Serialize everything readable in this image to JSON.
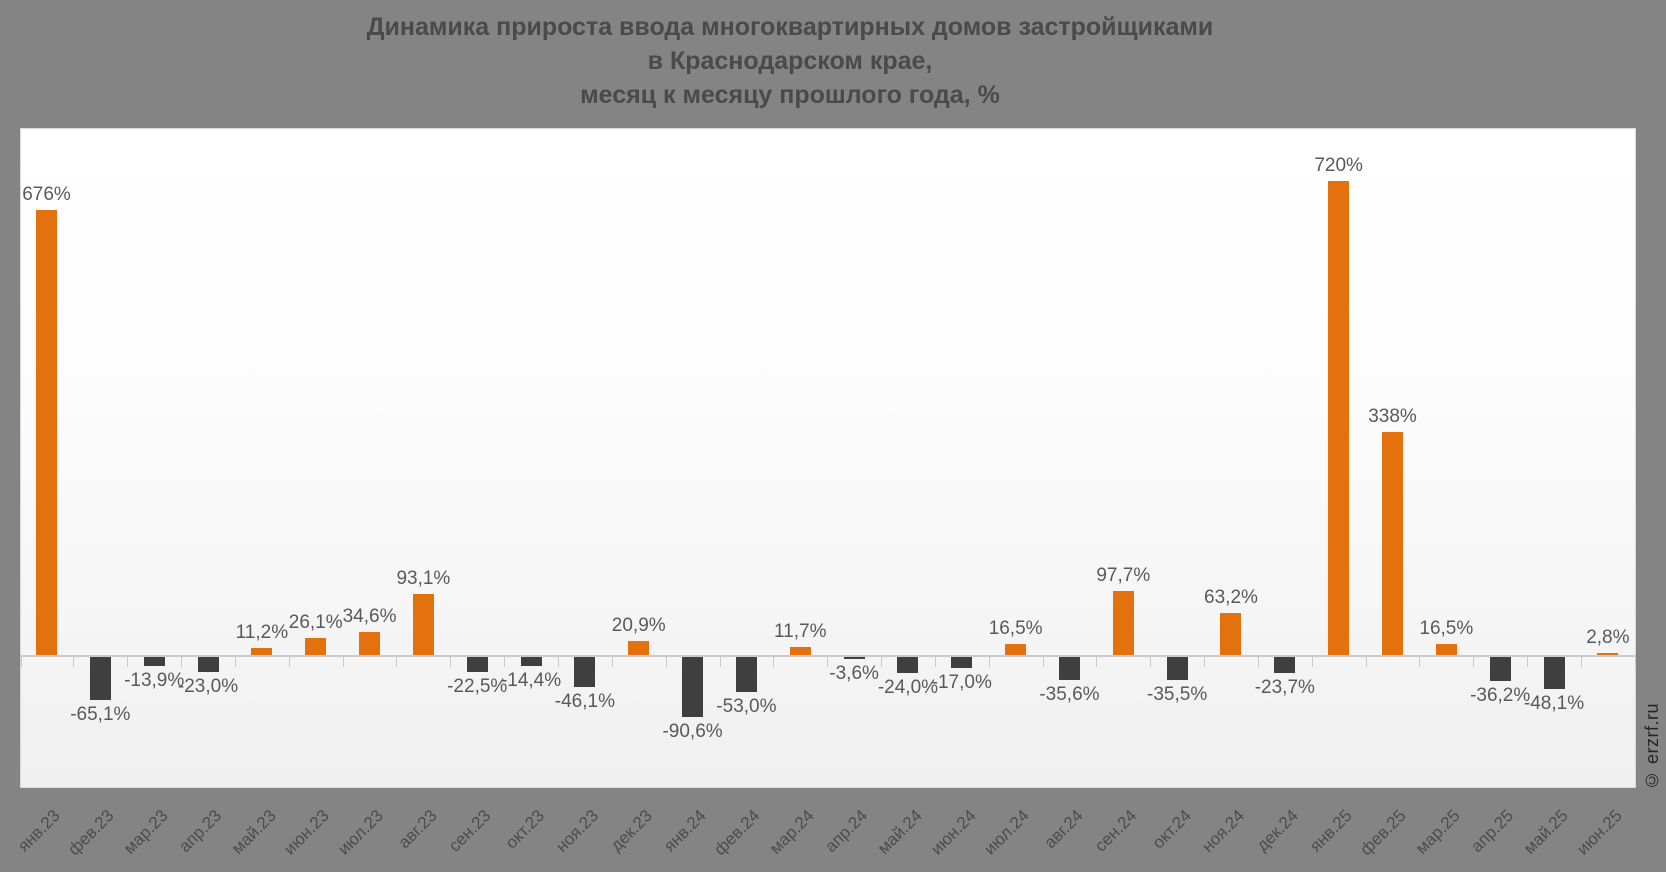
{
  "title": {
    "line1": "Динамика прироста ввода многоквартирных домов застройщиками",
    "line2": "в Краснодарском крае,",
    "line3": "месяц к месяцу прошлого года, %"
  },
  "watermark": "© erzrf.ru",
  "colors": {
    "background": "#848484",
    "positive_bar": "#e2710e",
    "negative_bar": "#3f3f3f",
    "axis": "#cccccc",
    "value_label": "#595959",
    "tick_label": "#4c4c4c",
    "title": "#4a4a4a",
    "watermark": "#262626",
    "plot_top": "#ffffff",
    "plot_bottom": "#f0f0f0"
  },
  "chart_data": {
    "type": "bar",
    "title": "Динамика прироста ввода многоквартирных домов застройщиками в Краснодарском крае, месяц к месяцу прошлого года, %",
    "xlabel": "",
    "ylabel": "",
    "ylim": [
      -200,
      810
    ],
    "grid": false,
    "legend_position": "none",
    "categories": [
      "янв.23",
      "фев.23",
      "мар.23",
      "апр.23",
      "май.23",
      "июн.23",
      "июл.23",
      "авг.23",
      "сен.23",
      "окт.23",
      "ноя.23",
      "дек.23",
      "янв.24",
      "фев.24",
      "мар.24",
      "апр.24",
      "май.24",
      "июн.24",
      "июл.24",
      "авг.24",
      "сен.24",
      "окт.24",
      "ноя.24",
      "дек.24",
      "янв.25",
      "фев.25",
      "мар.25",
      "апр.25",
      "май.25",
      "июн.25"
    ],
    "values": [
      676,
      -65.1,
      -13.9,
      -23.0,
      11.2,
      26.1,
      34.6,
      93.1,
      -22.5,
      -14.4,
      -46.1,
      20.9,
      -90.6,
      -53.0,
      11.7,
      -3.6,
      -24.0,
      -17.0,
      16.5,
      -35.6,
      97.7,
      -35.5,
      63.2,
      -23.7,
      720,
      338,
      16.5,
      -36.2,
      -48.1,
      2.8
    ],
    "value_labels": [
      "676%",
      "-65,1%",
      "-13,9%",
      "-23,0%",
      "11,2%",
      "26,1%",
      "34,6%",
      "93,1%",
      "-22,5%",
      "-14,4%",
      "-46,1%",
      "20,9%",
      "-90,6%",
      "-53,0%",
      "11,7%",
      "-3,6%",
      "-24,0%",
      "-17,0%",
      "16,5%",
      "-35,6%",
      "97,7%",
      "-35,5%",
      "63,2%",
      "-23,7%",
      "720%",
      "338%",
      "16,5%",
      "-36,2%",
      "-48,1%",
      "2,8%"
    ]
  }
}
